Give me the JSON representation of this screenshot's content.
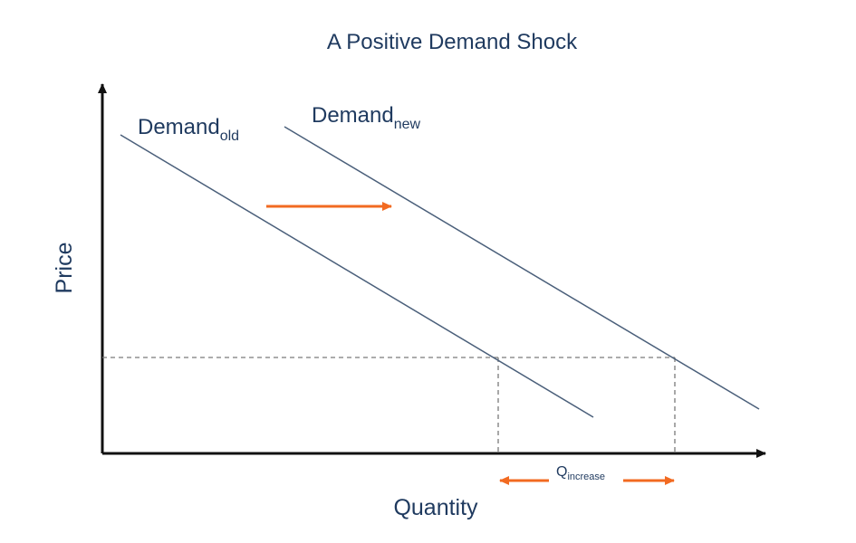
{
  "title": "A Positive Demand Shock",
  "axes": {
    "x_label": "Quantity",
    "y_label": "Price"
  },
  "curves": {
    "old": {
      "main": "Demand",
      "sub": "old"
    },
    "new": {
      "main": "Demand",
      "sub": "new"
    }
  },
  "annotations": {
    "q_increase": {
      "main": "Q",
      "sub": "increase"
    }
  },
  "colors": {
    "text": "#1f3a5f",
    "line": "#4a5f7a",
    "axis": "#111111",
    "arrow": "#f26a21",
    "dashed": "#7a7a7a"
  }
}
